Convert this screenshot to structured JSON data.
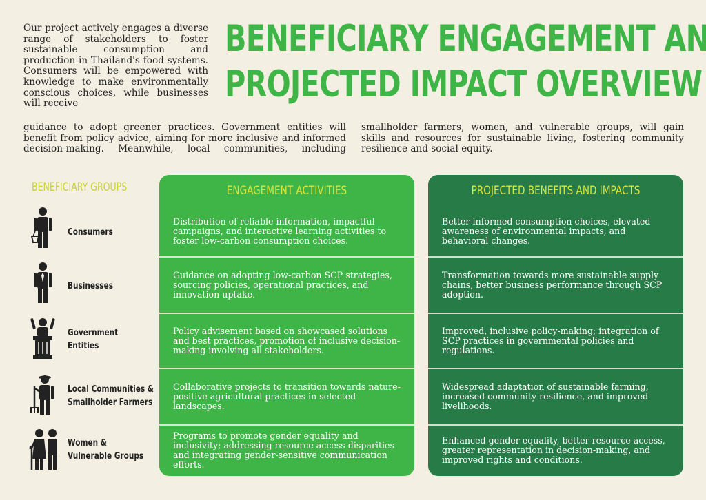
{
  "title": {
    "line1": "BENEFICIARY ENGAGEMENT AND",
    "line2": "PROJECTED IMPACT OVERVIEW"
  },
  "intro": {
    "part1": "Our project actively engages a diverse range of stakeholders to foster sustainable consumption and production in Thailand's food systems. Consumers will be empowered with knowledge to make environmentally conscious choices, while businesses will receive",
    "part2": "guidance to adopt greener practices. Government entities will benefit from policy advice, aiming for more inclusive and informed decision-making. Meanwhile, local communities, including smallholder farmers, women, and vulnerable groups, will gain skills and resources for sustainable living, fostering community resilience and social equity."
  },
  "headers": {
    "groups": "BENEFICIARY GROUPS",
    "engagement": "ENGAGEMENT ACTIVITIES",
    "impacts": "PROJECTED BENEFITS AND IMPACTS"
  },
  "rows": [
    {
      "group": "Consumers",
      "icon": "consumer-icon",
      "engagement": "Distribution of reliable information, impactful campaigns, and interactive learning activities to foster low-carbon consumption choices.",
      "impact": "Better-informed consumption choices, elevated awareness of environmental impacts, and behavioral changes."
    },
    {
      "group": "Businesses",
      "icon": "business-person-icon",
      "engagement": "Guidance on adopting low-carbon SCP strategies, sourcing policies, operational practices, and innovation uptake.",
      "impact": "Transformation towards more sustainable supply chains, better business performance through SCP adoption."
    },
    {
      "group": "Government Entities",
      "group_line1": "Government",
      "group_line2": "Entities",
      "icon": "podium-speaker-icon",
      "engagement": "Policy advisement based on showcased solutions and best practices, promotion of inclusive decision-making involving all stakeholders.",
      "impact": "Improved, inclusive policy-making; integration of SCP practices in governmental policies and regulations."
    },
    {
      "group": "Local Communities & Smallholder Farmers",
      "group_line1": "Local Communities &",
      "group_line2": "Smallholder Farmers",
      "icon": "farmer-icon",
      "engagement": "Collaborative projects to transition towards nature-positive agricultural practices in selected landscapes.",
      "impact": "Widespread adaptation of sustainable farming, increased community resilience, and improved livelihoods."
    },
    {
      "group": "Women & Vulnerable Groups",
      "group_line1": "Women &",
      "group_line2": "Vulnerable Groups",
      "icon": "elderly-couple-icon",
      "engagement": "Programs to promote gender equality and inclusivity; addressing resource access disparities and integrating gender-sensitive communication efforts.",
      "impact": "Enhanced gender equality, better resource access, greater representation in decision-making, and improved rights and conditions."
    }
  ],
  "colors": {
    "title_green": "#3fb447",
    "engagement_panel": "#3fb447",
    "impact_panel": "#277b47",
    "header_yellow": "#d9e63e",
    "background": "#f3efe3"
  }
}
